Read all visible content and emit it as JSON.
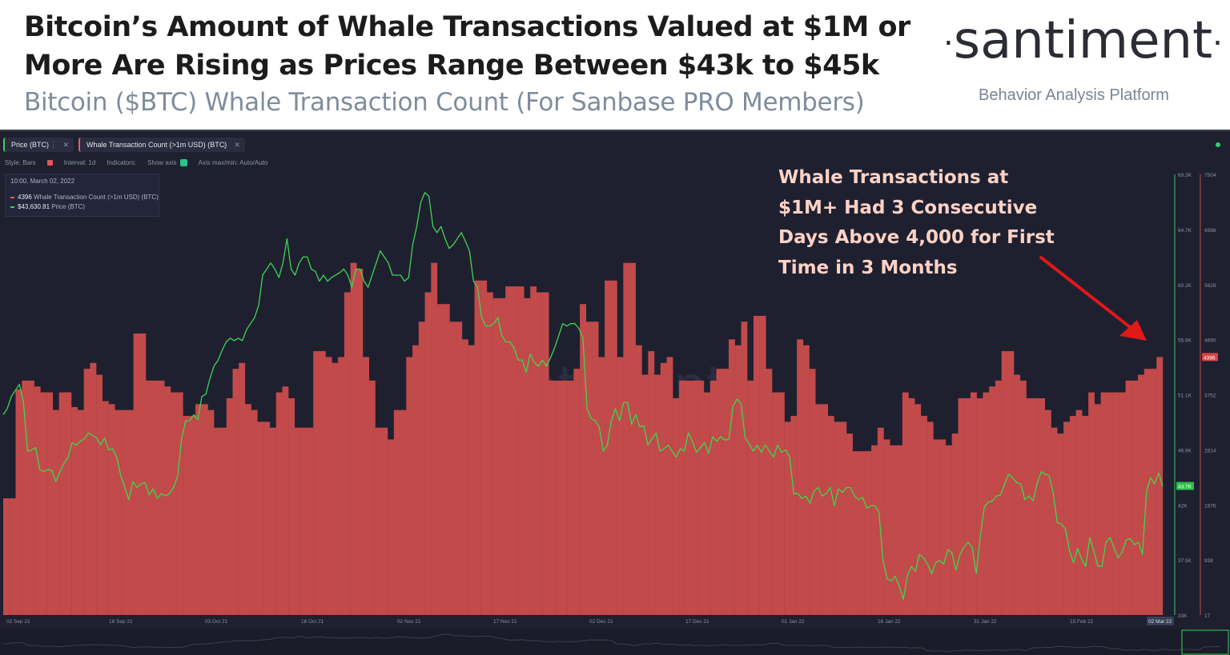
{
  "header": {
    "title": "Bitcoin’s Amount of Whale Transactions Valued at $1M or More Are Rising as Prices Range Between $43k to $45k",
    "subtitle": "Bitcoin ($BTC) Whale Transaction Count (For Sanbase PRO Members)",
    "logo": "santiment",
    "tagline": "Behavior Analysis Platform"
  },
  "tabs": [
    {
      "label": "Price (BTC)"
    },
    {
      "label": "Whale Transaction Count (>1m USD) (BTC)"
    }
  ],
  "toolbar": {
    "style": "Style: Bars",
    "interval": "Interval: 1d",
    "indicators": "Indicators:",
    "show_axis": "Show axis",
    "axis_mode": "Axis max/min: Auto/Auto"
  },
  "legend": {
    "date": "10:00, March 02, 2022",
    "whale_value": "4396",
    "whale_label": "Whale Transaction Count (>1m USD) (BTC)",
    "price_value": "$43,630.81",
    "price_label": "Price (BTC)"
  },
  "annotation": "Whale Transactions at $1M+ Had 3 Consecutive Days Above 4,000 for First Time in 3 Months",
  "watermark": "santiment",
  "colors": {
    "background": "#1e2030",
    "whale_bars": "#c24a4a",
    "price_line": "#3ed64f",
    "annotation_text": "#ffd2c5",
    "arrow": "#e01818"
  },
  "chart_data": {
    "type": "bar",
    "x_range": [
      "2021-09-02",
      "2022-03-02"
    ],
    "x_ticks": [
      "02 Sep 21",
      "18 Sep 21",
      "03 Oct 21",
      "18 Oct 21",
      "02 Nov 21",
      "17 Nov 21",
      "02 Dec 21",
      "17 Dec 21",
      "01 Jan 22",
      "16 Jan 22",
      "31 Jan 22",
      "15 Feb 22",
      "02 Mar 22"
    ],
    "price_axis": {
      "ticks": [
        "69.3K",
        "64.7K",
        "60.2K",
        "55.6K",
        "51.1K",
        "46.6K",
        "42K",
        "37.5K",
        "33K"
      ],
      "ylim": [
        33000,
        69300
      ],
      "current_label": "43.7K"
    },
    "whale_axis": {
      "ticks": [
        "7504",
        "6566",
        "5628",
        "4690",
        "3752",
        "2814",
        "1876",
        "938",
        "17"
      ],
      "ylim": [
        17,
        7504
      ],
      "current_label": "4396"
    },
    "series": [
      {
        "name": "Whale Transaction Count (>1m USD) (BTC)",
        "type": "bar",
        "values": [
          2000,
          2000,
          3850,
          4000,
          4000,
          3900,
          3800,
          3800,
          3500,
          3800,
          3800,
          3550,
          3500,
          4200,
          4300,
          4100,
          3650,
          3600,
          3500,
          3500,
          3500,
          4800,
          4800,
          4000,
          4000,
          4000,
          3900,
          3800,
          3800,
          3400,
          3400,
          3600,
          3600,
          3500,
          3200,
          3200,
          3700,
          4200,
          4300,
          3600,
          3500,
          3300,
          3300,
          3200,
          3800,
          3900,
          3700,
          3200,
          3200,
          3200,
          4500,
          4500,
          4400,
          4300,
          4400,
          5500,
          6000,
          5900,
          4400,
          4000,
          3200,
          3200,
          3000,
          3500,
          3500,
          4400,
          4600,
          5000,
          5500,
          6000,
          5300,
          5300,
          5000,
          5000,
          4700,
          4600,
          5700,
          5700,
          5500,
          5400,
          5400,
          5600,
          5600,
          5600,
          5400,
          5600,
          5500,
          5500,
          4000,
          4000,
          4000,
          4000,
          4200,
          5300,
          5000,
          5000,
          4400,
          5700,
          5700,
          4400,
          6000,
          6000,
          4600,
          4100,
          4500,
          4100,
          4300,
          4400,
          3700,
          4000,
          4000,
          4000,
          4000,
          3800,
          4000,
          4200,
          4200,
          4700,
          4600,
          5000,
          4000,
          5100,
          5100,
          4200,
          3800,
          3800,
          3300,
          3400,
          4700,
          4600,
          4200,
          3600,
          3600,
          3400,
          3300,
          3300,
          3100,
          2800,
          2800,
          2800,
          2900,
          3200,
          3000,
          2900,
          2900,
          3800,
          3700,
          3600,
          3400,
          3300,
          3000,
          3000,
          2900,
          3100,
          3700,
          3700,
          3800,
          3700,
          3800,
          3900,
          4000,
          4500,
          4500,
          4100,
          4000,
          3700,
          3700,
          3700,
          3500,
          3200,
          3100,
          3300,
          3400,
          3500,
          3400,
          3800,
          3600,
          3800,
          3800,
          3800,
          3800,
          4000,
          4000,
          4100,
          4200,
          4200,
          4400
        ]
      },
      {
        "name": "Price (BTC)",
        "type": "line",
        "values": [
          49500,
          50000,
          51000,
          51500,
          52000,
          50500,
          46500,
          46600,
          46800,
          45000,
          44800,
          45000,
          44900,
          44000,
          44800,
          45500,
          46000,
          47200,
          47000,
          47300,
          47500,
          48000,
          47800,
          47600,
          47000,
          47600,
          46600,
          46700,
          46000,
          44500,
          43500,
          42500,
          44000,
          43500,
          43800,
          43900,
          42900,
          43400,
          42600,
          43000,
          42800,
          43000,
          43500,
          44400,
          47500,
          49000,
          49000,
          49500,
          49100,
          51000,
          51200,
          52500,
          53500,
          54000,
          54800,
          55500,
          55800,
          55600,
          55800,
          55600,
          56500,
          57000,
          57500,
          58500,
          61000,
          61500,
          62000,
          61500,
          60800,
          62000,
          64000,
          61500,
          61000,
          62000,
          62500,
          62500,
          61500,
          61300,
          60500,
          61000,
          60500,
          60800,
          61000,
          61200,
          61500,
          61000,
          60000,
          61500,
          61500,
          60500,
          60000,
          61000,
          62000,
          63000,
          62500,
          62000,
          61000,
          61000,
          61000,
          60500,
          60800,
          63500,
          65000,
          67000,
          67800,
          67500,
          65000,
          64500,
          65000,
          64000,
          63200,
          63500,
          64000,
          64500,
          63800,
          63000,
          60500,
          60000,
          57500,
          56800,
          56800,
          57000,
          57500,
          56000,
          55500,
          55500,
          55000,
          54000,
          54000,
          53000,
          54500,
          53800,
          53500,
          54000,
          53500,
          54200,
          55000,
          56000,
          57000,
          56800,
          57000,
          57000,
          56600,
          55800,
          50000,
          49200,
          49000,
          48500,
          46500,
          47000,
          49000,
          50000,
          49000,
          50500,
          50500,
          48700,
          49500,
          48500,
          48600,
          47000,
          47500,
          48000,
          46500,
          46700,
          47000,
          46500,
          46000,
          46700,
          46500,
          48000,
          47300,
          46400,
          46800,
          47200,
          46300,
          47700,
          47300,
          47700,
          47400,
          47500,
          50200,
          50800,
          50400,
          47600,
          47100,
          46500,
          47000,
          46400,
          47000,
          46500,
          46000,
          47000,
          46400,
          46600,
          46000,
          43000,
          43000,
          42600,
          42800,
          42200,
          43200,
          43500,
          42800,
          43000,
          43500,
          42000,
          43400,
          43100,
          43500,
          43500,
          42800,
          42500,
          42700,
          41800,
          42000,
          42000,
          41500,
          37500,
          36000,
          35800,
          36200,
          35400,
          34300,
          36200,
          37000,
          36600,
          38000,
          37700,
          37200,
          36400,
          37300,
          37500,
          37200,
          38400,
          38100,
          36700,
          38000,
          38600,
          39000,
          38600,
          36400,
          39500,
          41900,
          42300,
          42400,
          42800,
          42900,
          43800,
          44600,
          44300,
          43900,
          43800,
          42500,
          42800,
          42400,
          43800,
          44800,
          44600,
          44500,
          43000,
          40600,
          40500,
          40100,
          38300,
          37300,
          38500,
          37600,
          37000,
          39400,
          38300,
          37000,
          37000,
          39000,
          39400,
          38500,
          37700,
          38200,
          39200,
          39300,
          38800,
          39000,
          38000,
          43200,
          44300,
          43800,
          44700,
          43630
        ]
      }
    ]
  }
}
